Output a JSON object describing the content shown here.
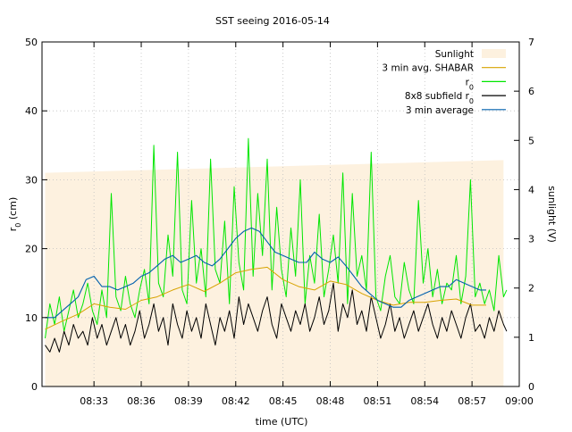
{
  "chart_data": {
    "type": "line",
    "title": "SST seeing 2016-05-14",
    "xlabel": "time (UTC)",
    "ylabel": "r",
    "ylabel_sub": "0",
    "ylabel_unit": " (cm)",
    "y2label": "sunlight (V)",
    "x_unit": "minutes after 08:00 UTC",
    "xlim": [
      29.7,
      60.0
    ],
    "ylim": [
      0,
      50
    ],
    "y2lim": [
      0,
      7
    ],
    "x_ticks": [
      {
        "value": 33,
        "label": "08:33"
      },
      {
        "value": 36,
        "label": "08:36"
      },
      {
        "value": 39,
        "label": "08:39"
      },
      {
        "value": 42,
        "label": "08:42"
      },
      {
        "value": 45,
        "label": "08:45"
      },
      {
        "value": 48,
        "label": "08:48"
      },
      {
        "value": 51,
        "label": "08:51"
      },
      {
        "value": 54,
        "label": "08:54"
      },
      {
        "value": 57,
        "label": "08:57"
      },
      {
        "value": 60,
        "label": "09:00"
      }
    ],
    "y_ticks": [
      0,
      10,
      20,
      30,
      40,
      50
    ],
    "y2_ticks": [
      0,
      1,
      2,
      3,
      4,
      5,
      6,
      7
    ],
    "grid": true,
    "legend_position": "top-right",
    "legend": [
      {
        "label": "Sunlight",
        "sub": "",
        "series": "sunlight"
      },
      {
        "label": "3 min avg. SHABAR",
        "sub": "",
        "series": "shabar"
      },
      {
        "label": "r",
        "sub": "0",
        "series": "r0"
      },
      {
        "label": "8x8 subfield r",
        "sub": "0",
        "series": "sub"
      },
      {
        "label": "3 min average",
        "sub": "",
        "series": "avg"
      }
    ],
    "colors": {
      "sunlight": "#fdf1df",
      "shabar": "#d7a300",
      "r0": "#00e600",
      "sub": "#000000",
      "avg": "#0060ad",
      "grid": "#c0c0c0"
    },
    "series": {
      "sunlight": {
        "axis": "y2",
        "x": [
          29.9,
          59.0
        ],
        "y": [
          4.34,
          4.6
        ]
      },
      "shabar": {
        "axis": "y",
        "x": [
          29.9,
          31,
          32,
          33,
          34,
          35,
          36,
          37,
          38,
          39,
          40,
          41,
          42,
          43,
          44,
          45,
          46,
          47,
          48,
          49,
          50,
          51,
          52,
          53,
          54,
          55,
          56,
          57,
          57.9
        ],
        "y": [
          8.3,
          9.5,
          10.5,
          12.0,
          11.5,
          11.2,
          12.5,
          13.0,
          14.0,
          14.8,
          13.8,
          15.0,
          16.5,
          17.0,
          17.3,
          15.5,
          14.5,
          14.0,
          15.3,
          14.8,
          13.5,
          12.5,
          11.8,
          12.2,
          12.2,
          12.5,
          12.7,
          11.8,
          11.8
        ]
      },
      "avg": {
        "axis": "y",
        "x": [
          29.9,
          30.5,
          31,
          31.5,
          32,
          32.5,
          33,
          33.5,
          34,
          34.5,
          35,
          35.5,
          36,
          36.5,
          37,
          37.5,
          38,
          38.5,
          39,
          39.5,
          40,
          40.5,
          41,
          41.5,
          42,
          42.5,
          43,
          43.5,
          44,
          44.5,
          45,
          45.5,
          46,
          46.5,
          47,
          47.5,
          48,
          48.5,
          49,
          49.5,
          50,
          50.5,
          51,
          51.5,
          52,
          52.5,
          53,
          53.5,
          54,
          54.5,
          55,
          55.5,
          56,
          56.5,
          57,
          57.5,
          57.9
        ],
        "y": [
          10.0,
          10.0,
          11.0,
          12.0,
          13.0,
          15.5,
          16.0,
          14.5,
          14.5,
          14.0,
          14.5,
          15.0,
          16.0,
          16.5,
          17.5,
          18.5,
          19.0,
          18.0,
          18.5,
          19.0,
          18.0,
          17.5,
          18.5,
          20.0,
          21.5,
          22.5,
          23.0,
          22.5,
          21.0,
          19.5,
          19.0,
          18.5,
          18.0,
          18.0,
          19.5,
          18.5,
          18.0,
          18.8,
          17.5,
          16.0,
          14.5,
          13.5,
          12.5,
          12.0,
          11.5,
          11.5,
          12.5,
          13.0,
          13.5,
          14.0,
          14.5,
          14.5,
          15.5,
          15.0,
          14.5,
          14.0,
          14.0
        ]
      },
      "r0": {
        "axis": "y",
        "x": [
          29.9,
          30.2,
          30.5,
          30.8,
          31.1,
          31.4,
          31.7,
          32.0,
          32.3,
          32.6,
          32.9,
          33.2,
          33.5,
          33.8,
          34.1,
          34.4,
          34.7,
          35.0,
          35.3,
          35.6,
          35.9,
          36.2,
          36.5,
          36.8,
          37.1,
          37.4,
          37.7,
          38.0,
          38.3,
          38.6,
          38.9,
          39.2,
          39.5,
          39.8,
          40.1,
          40.4,
          40.7,
          41.0,
          41.3,
          41.6,
          41.9,
          42.2,
          42.5,
          42.8,
          43.1,
          43.4,
          43.7,
          44.0,
          44.3,
          44.6,
          44.9,
          45.2,
          45.5,
          45.8,
          46.1,
          46.4,
          46.7,
          47.0,
          47.3,
          47.6,
          47.9,
          48.2,
          48.5,
          48.8,
          49.1,
          49.4,
          49.7,
          50.0,
          50.3,
          50.6,
          50.9,
          51.2,
          51.5,
          51.8,
          52.1,
          52.4,
          52.7,
          53.0,
          53.3,
          53.6,
          53.9,
          54.2,
          54.5,
          54.8,
          55.1,
          55.4,
          55.7,
          56.0,
          56.3,
          56.6,
          56.9,
          57.2,
          57.5,
          57.8,
          58.1,
          58.4,
          58.7,
          59.0,
          59.2
        ],
        "y": [
          7,
          12,
          9,
          13,
          8,
          11,
          14,
          10,
          12,
          15,
          11,
          9,
          14,
          10,
          28,
          13,
          11,
          16,
          12,
          10,
          14,
          17,
          12,
          35,
          15,
          13,
          22,
          16,
          34,
          14,
          12,
          27,
          15,
          20,
          13,
          33,
          17,
          15,
          24,
          12,
          29,
          18,
          14,
          36,
          16,
          28,
          19,
          33,
          14,
          26,
          17,
          13,
          23,
          16,
          30,
          12,
          19,
          15,
          25,
          13,
          17,
          22,
          15,
          31,
          12,
          28,
          16,
          19,
          14,
          34,
          13,
          11,
          16,
          19,
          13,
          12,
          18,
          14,
          12,
          27,
          15,
          20,
          13,
          17,
          12,
          15,
          14,
          19,
          12,
          16,
          30,
          13,
          15,
          12,
          14,
          11,
          19,
          13,
          14
        ]
      },
      "sub": {
        "axis": "y",
        "x": [
          29.9,
          30.2,
          30.5,
          30.8,
          31.1,
          31.4,
          31.7,
          32.0,
          32.3,
          32.6,
          32.9,
          33.2,
          33.5,
          33.8,
          34.1,
          34.4,
          34.7,
          35.0,
          35.3,
          35.6,
          35.9,
          36.2,
          36.5,
          36.8,
          37.1,
          37.4,
          37.7,
          38.0,
          38.3,
          38.6,
          38.9,
          39.2,
          39.5,
          39.8,
          40.1,
          40.4,
          40.7,
          41.0,
          41.3,
          41.6,
          41.9,
          42.2,
          42.5,
          42.8,
          43.1,
          43.4,
          43.7,
          44.0,
          44.3,
          44.6,
          44.9,
          45.2,
          45.5,
          45.8,
          46.1,
          46.4,
          46.7,
          47.0,
          47.3,
          47.6,
          47.9,
          48.2,
          48.5,
          48.8,
          49.1,
          49.4,
          49.7,
          50.0,
          50.3,
          50.6,
          50.9,
          51.2,
          51.5,
          51.8,
          52.1,
          52.4,
          52.7,
          53.0,
          53.3,
          53.6,
          53.9,
          54.2,
          54.5,
          54.8,
          55.1,
          55.4,
          55.7,
          56.0,
          56.3,
          56.6,
          56.9,
          57.2,
          57.5,
          57.8,
          58.1,
          58.4,
          58.7,
          59.0,
          59.2
        ],
        "y": [
          6,
          5,
          7,
          5,
          8,
          6,
          9,
          7,
          8,
          6,
          10,
          7,
          9,
          6,
          8,
          10,
          7,
          9,
          6,
          8,
          11,
          7,
          9,
          12,
          8,
          10,
          6,
          12,
          9,
          7,
          11,
          8,
          10,
          7,
          12,
          9,
          6,
          10,
          8,
          11,
          7,
          13,
          9,
          12,
          10,
          8,
          11,
          13,
          9,
          7,
          12,
          10,
          8,
          11,
          9,
          12,
          8,
          10,
          13,
          9,
          11,
          15,
          8,
          12,
          10,
          14,
          9,
          11,
          8,
          13,
          10,
          7,
          9,
          12,
          8,
          10,
          7,
          9,
          11,
          8,
          10,
          12,
          9,
          7,
          10,
          8,
          11,
          9,
          7,
          10,
          12,
          8,
          9,
          7,
          10,
          8,
          11,
          9,
          8
        ]
      }
    }
  }
}
